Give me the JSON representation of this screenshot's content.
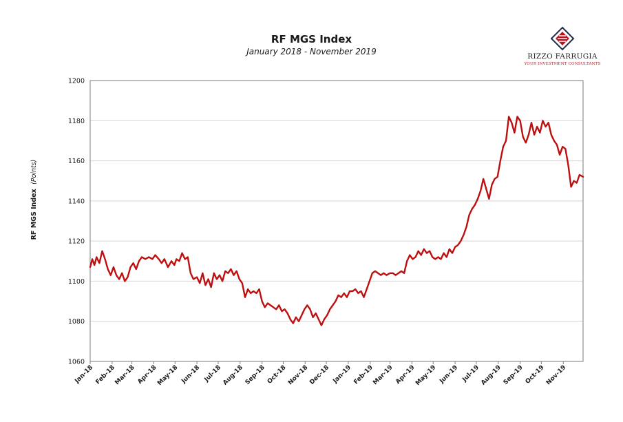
{
  "header": {
    "title": "RF MGS Index",
    "subtitle": "January 2018 - November 2019"
  },
  "logo": {
    "name": "RIZZO FARRUGIA",
    "tagline": "YOUR INVESTMENT CONSULTANTS",
    "colors": {
      "red": "#c0111a",
      "dark": "#1f2d47"
    }
  },
  "chart_data": {
    "type": "line",
    "title": "RF MGS Index",
    "subtitle": "January 2018 - November 2019",
    "ylabel": "RF MGS Index",
    "ylabel_unit": "(Points)",
    "xlabel": "",
    "ylim": [
      1060,
      1200
    ],
    "yticks": [
      1060,
      1080,
      1100,
      1120,
      1140,
      1160,
      1180,
      1200
    ],
    "x_range": [
      "2018-01-01",
      "2019-11-29"
    ],
    "x_tick_dates": [
      "2018-01-01",
      "2018-02-01",
      "2018-03-01",
      "2018-04-01",
      "2018-05-01",
      "2018-06-01",
      "2018-07-01",
      "2018-08-01",
      "2018-09-01",
      "2018-10-01",
      "2018-11-01",
      "2018-12-01",
      "2019-01-01",
      "2019-02-01",
      "2019-03-01",
      "2019-04-01",
      "2019-05-01",
      "2019-06-01",
      "2019-07-01",
      "2019-08-01",
      "2019-09-01",
      "2019-10-01",
      "2019-11-01"
    ],
    "x_tick_labels": [
      "Jan-18",
      "Feb-18",
      "Mar-18",
      "Apr-18",
      "May-18",
      "Jun-18",
      "Jul-18",
      "Aug-18",
      "Sep-18",
      "Oct-18",
      "Nov-18",
      "Dec-18",
      "Jan-19",
      "Feb-19",
      "Mar-19",
      "Apr-19",
      "May-19",
      "Jun-19",
      "Jul-19",
      "Aug-19",
      "Sep-19",
      "Oct-19",
      "Nov-19"
    ],
    "grid": "horizontal",
    "line_color": "#bd0f0f",
    "series": [
      {
        "points": [
          [
            "2018-01-01",
            1107
          ],
          [
            "2018-01-04",
            1111
          ],
          [
            "2018-01-07",
            1108
          ],
          [
            "2018-01-10",
            1112
          ],
          [
            "2018-01-14",
            1109
          ],
          [
            "2018-01-18",
            1115
          ],
          [
            "2018-01-22",
            1111
          ],
          [
            "2018-01-26",
            1106
          ],
          [
            "2018-01-30",
            1103
          ],
          [
            "2018-02-03",
            1107
          ],
          [
            "2018-02-07",
            1103
          ],
          [
            "2018-02-11",
            1101
          ],
          [
            "2018-02-15",
            1104
          ],
          [
            "2018-02-19",
            1100
          ],
          [
            "2018-02-23",
            1102
          ],
          [
            "2018-02-27",
            1107
          ],
          [
            "2018-03-03",
            1109
          ],
          [
            "2018-03-07",
            1106
          ],
          [
            "2018-03-11",
            1110
          ],
          [
            "2018-03-15",
            1112
          ],
          [
            "2018-03-20",
            1111
          ],
          [
            "2018-03-25",
            1112
          ],
          [
            "2018-03-30",
            1111
          ],
          [
            "2018-04-03",
            1113
          ],
          [
            "2018-04-08",
            1111
          ],
          [
            "2018-04-12",
            1109
          ],
          [
            "2018-04-16",
            1111
          ],
          [
            "2018-04-21",
            1107
          ],
          [
            "2018-04-26",
            1110
          ],
          [
            "2018-04-30",
            1108
          ],
          [
            "2018-05-03",
            1111
          ],
          [
            "2018-05-07",
            1110
          ],
          [
            "2018-05-11",
            1114
          ],
          [
            "2018-05-15",
            1111
          ],
          [
            "2018-05-19",
            1112
          ],
          [
            "2018-05-23",
            1104
          ],
          [
            "2018-05-27",
            1101
          ],
          [
            "2018-06-01",
            1102
          ],
          [
            "2018-06-05",
            1099
          ],
          [
            "2018-06-09",
            1104
          ],
          [
            "2018-06-13",
            1098
          ],
          [
            "2018-06-17",
            1101
          ],
          [
            "2018-06-21",
            1097
          ],
          [
            "2018-06-25",
            1104
          ],
          [
            "2018-06-29",
            1101
          ],
          [
            "2018-07-03",
            1103
          ],
          [
            "2018-07-07",
            1100
          ],
          [
            "2018-07-11",
            1105
          ],
          [
            "2018-07-15",
            1104
          ],
          [
            "2018-07-19",
            1106
          ],
          [
            "2018-07-23",
            1103
          ],
          [
            "2018-07-27",
            1105
          ],
          [
            "2018-07-31",
            1101
          ],
          [
            "2018-08-04",
            1099
          ],
          [
            "2018-08-08",
            1092
          ],
          [
            "2018-08-12",
            1096
          ],
          [
            "2018-08-16",
            1094
          ],
          [
            "2018-08-20",
            1095
          ],
          [
            "2018-08-24",
            1094
          ],
          [
            "2018-08-28",
            1096
          ],
          [
            "2018-09-01",
            1090
          ],
          [
            "2018-09-05",
            1087
          ],
          [
            "2018-09-09",
            1089
          ],
          [
            "2018-09-13",
            1088
          ],
          [
            "2018-09-17",
            1087
          ],
          [
            "2018-09-21",
            1086
          ],
          [
            "2018-09-25",
            1088
          ],
          [
            "2018-09-29",
            1085
          ],
          [
            "2018-10-03",
            1086
          ],
          [
            "2018-10-07",
            1084
          ],
          [
            "2018-10-11",
            1081
          ],
          [
            "2018-10-15",
            1079
          ],
          [
            "2018-10-19",
            1082
          ],
          [
            "2018-10-23",
            1080
          ],
          [
            "2018-10-27",
            1083
          ],
          [
            "2018-10-31",
            1086
          ],
          [
            "2018-11-04",
            1088
          ],
          [
            "2018-11-08",
            1086
          ],
          [
            "2018-11-12",
            1082
          ],
          [
            "2018-11-16",
            1084
          ],
          [
            "2018-11-20",
            1081
          ],
          [
            "2018-11-24",
            1078
          ],
          [
            "2018-11-28",
            1081
          ],
          [
            "2018-12-02",
            1083
          ],
          [
            "2018-12-06",
            1086
          ],
          [
            "2018-12-10",
            1088
          ],
          [
            "2018-12-14",
            1090
          ],
          [
            "2018-12-18",
            1093
          ],
          [
            "2018-12-22",
            1092
          ],
          [
            "2018-12-26",
            1094
          ],
          [
            "2018-12-30",
            1092
          ],
          [
            "2019-01-03",
            1095
          ],
          [
            "2019-01-07",
            1095
          ],
          [
            "2019-01-11",
            1096
          ],
          [
            "2019-01-15",
            1094
          ],
          [
            "2019-01-19",
            1095
          ],
          [
            "2019-01-23",
            1092
          ],
          [
            "2019-01-27",
            1096
          ],
          [
            "2019-01-31",
            1100
          ],
          [
            "2019-02-04",
            1104
          ],
          [
            "2019-02-08",
            1105
          ],
          [
            "2019-02-12",
            1104
          ],
          [
            "2019-02-16",
            1103
          ],
          [
            "2019-02-20",
            1104
          ],
          [
            "2019-02-24",
            1103
          ],
          [
            "2019-03-01",
            1104
          ],
          [
            "2019-03-05",
            1104
          ],
          [
            "2019-03-09",
            1103
          ],
          [
            "2019-03-13",
            1104
          ],
          [
            "2019-03-17",
            1105
          ],
          [
            "2019-03-21",
            1104
          ],
          [
            "2019-03-25",
            1110
          ],
          [
            "2019-03-29",
            1113
          ],
          [
            "2019-04-02",
            1111
          ],
          [
            "2019-04-06",
            1112
          ],
          [
            "2019-04-10",
            1115
          ],
          [
            "2019-04-14",
            1113
          ],
          [
            "2019-04-18",
            1116
          ],
          [
            "2019-04-22",
            1114
          ],
          [
            "2019-04-26",
            1115
          ],
          [
            "2019-04-30",
            1112
          ],
          [
            "2019-05-04",
            1111
          ],
          [
            "2019-05-08",
            1112
          ],
          [
            "2019-05-12",
            1111
          ],
          [
            "2019-05-16",
            1114
          ],
          [
            "2019-05-20",
            1112
          ],
          [
            "2019-05-24",
            1116
          ],
          [
            "2019-05-28",
            1114
          ],
          [
            "2019-06-01",
            1117
          ],
          [
            "2019-06-05",
            1118
          ],
          [
            "2019-06-09",
            1120
          ],
          [
            "2019-06-13",
            1123
          ],
          [
            "2019-06-17",
            1127
          ],
          [
            "2019-06-21",
            1133
          ],
          [
            "2019-06-25",
            1136
          ],
          [
            "2019-06-29",
            1138
          ],
          [
            "2019-07-03",
            1141
          ],
          [
            "2019-07-07",
            1145
          ],
          [
            "2019-07-11",
            1151
          ],
          [
            "2019-07-15",
            1146
          ],
          [
            "2019-07-19",
            1141
          ],
          [
            "2019-07-23",
            1148
          ],
          [
            "2019-07-27",
            1151
          ],
          [
            "2019-07-31",
            1152
          ],
          [
            "2019-08-04",
            1160
          ],
          [
            "2019-08-08",
            1167
          ],
          [
            "2019-08-12",
            1170
          ],
          [
            "2019-08-16",
            1182
          ],
          [
            "2019-08-20",
            1179
          ],
          [
            "2019-08-24",
            1174
          ],
          [
            "2019-08-28",
            1182
          ],
          [
            "2019-09-01",
            1180
          ],
          [
            "2019-09-05",
            1172
          ],
          [
            "2019-09-09",
            1169
          ],
          [
            "2019-09-13",
            1173
          ],
          [
            "2019-09-17",
            1179
          ],
          [
            "2019-09-21",
            1173
          ],
          [
            "2019-09-25",
            1177
          ],
          [
            "2019-09-29",
            1174
          ],
          [
            "2019-10-03",
            1180
          ],
          [
            "2019-10-07",
            1177
          ],
          [
            "2019-10-11",
            1179
          ],
          [
            "2019-10-15",
            1173
          ],
          [
            "2019-10-19",
            1170
          ],
          [
            "2019-10-23",
            1168
          ],
          [
            "2019-10-27",
            1163
          ],
          [
            "2019-10-31",
            1167
          ],
          [
            "2019-11-04",
            1166
          ],
          [
            "2019-11-08",
            1158
          ],
          [
            "2019-11-12",
            1147
          ],
          [
            "2019-11-16",
            1150
          ],
          [
            "2019-11-20",
            1149
          ],
          [
            "2019-11-24",
            1153
          ],
          [
            "2019-11-29",
            1152
          ]
        ]
      }
    ]
  }
}
